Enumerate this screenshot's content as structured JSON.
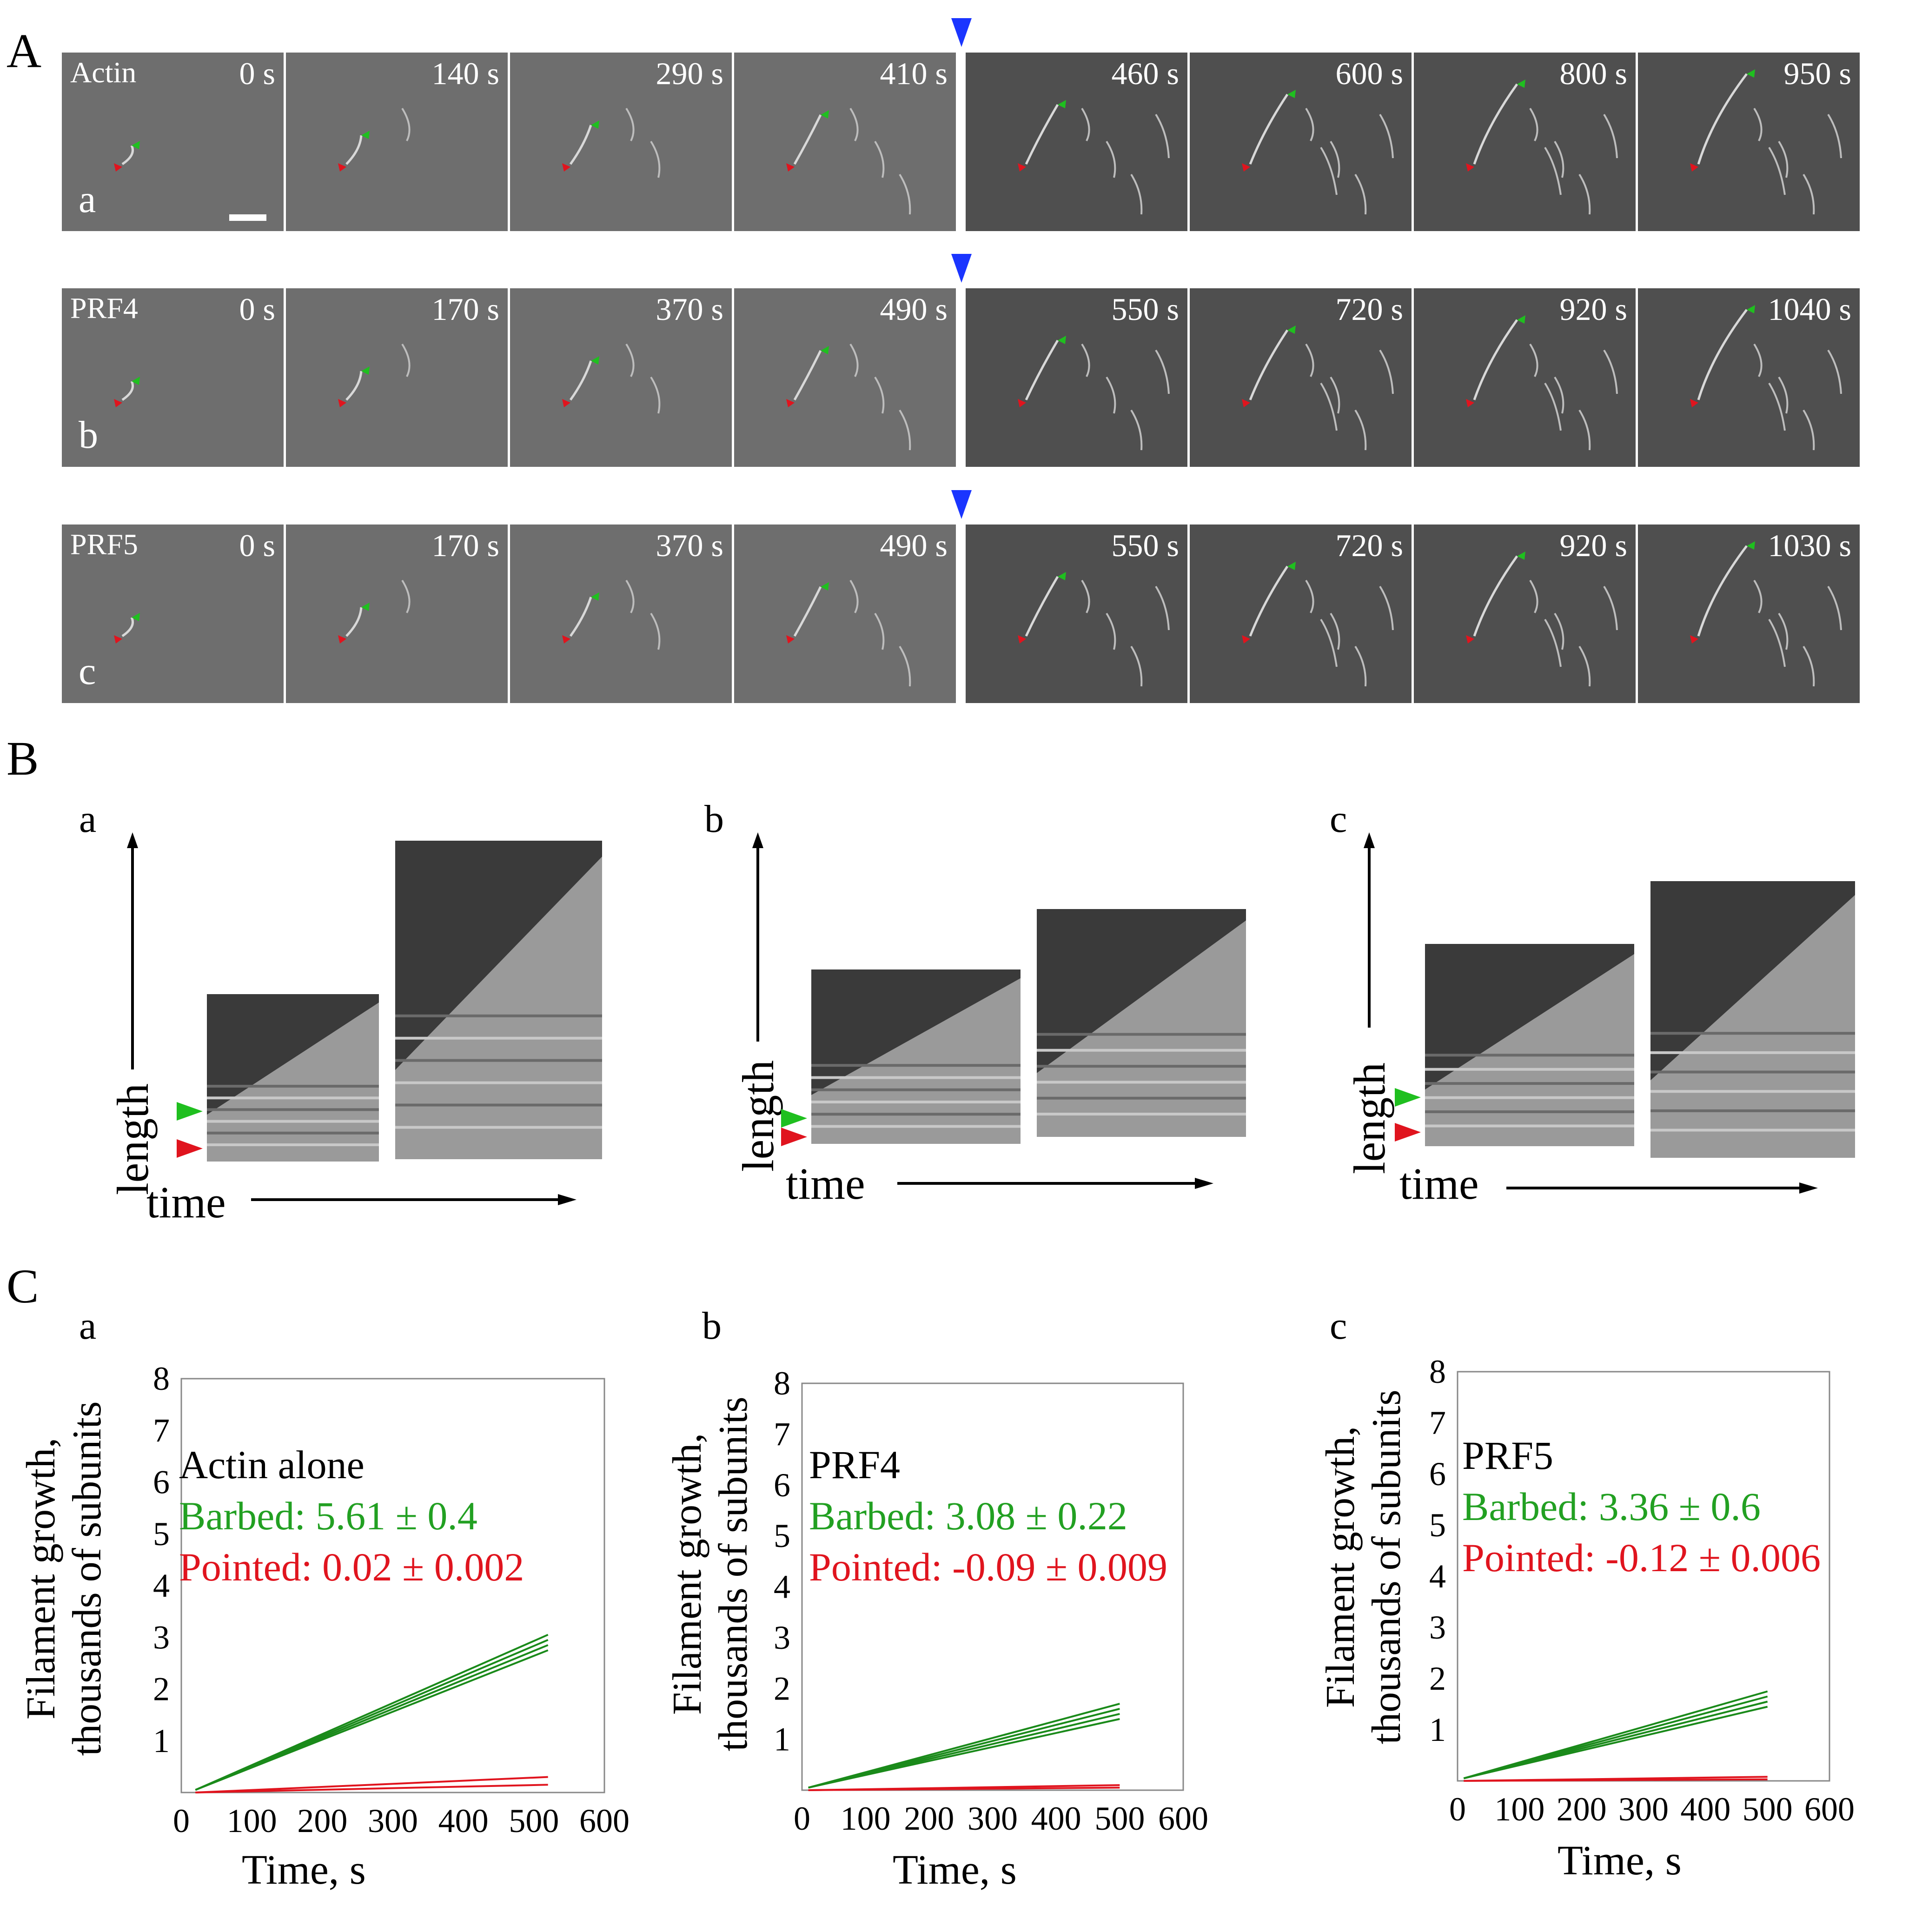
{
  "panels": {
    "A": {
      "label": "A",
      "rows": [
        {
          "condition": "Actin",
          "letter": "a",
          "times": [
            "0 s",
            "140 s",
            "290 s",
            "410 s",
            "460 s",
            "600 s",
            "800 s",
            "950 s"
          ]
        },
        {
          "condition": "PRF4",
          "letter": "b",
          "times": [
            "0 s",
            "170 s",
            "370 s",
            "490 s",
            "550 s",
            "720 s",
            "920 s",
            "1040 s"
          ]
        },
        {
          "condition": "PRF5",
          "letter": "c",
          "times": [
            "0 s",
            "170 s",
            "370 s",
            "490 s",
            "550 s",
            "720 s",
            "920 s",
            "1030 s"
          ]
        }
      ]
    },
    "B": {
      "label": "B",
      "subpanels": [
        {
          "letter": "a",
          "y_axis": "length",
          "x_axis": "time"
        },
        {
          "letter": "b",
          "y_axis": "length",
          "x_axis": "time"
        },
        {
          "letter": "c",
          "y_axis": "length",
          "x_axis": "time"
        }
      ]
    },
    "C": {
      "label": "C",
      "subpanels": [
        {
          "letter": "a",
          "condition": "Actin alone",
          "barbed": "Barbed:  5.61 ± 0.4",
          "pointed": "Pointed: 0.02 ± 0.002"
        },
        {
          "letter": "b",
          "condition": "PRF4",
          "barbed": "Barbed:  3.08 ± 0.22",
          "pointed": "Pointed: -0.09 ± 0.009"
        },
        {
          "letter": "c",
          "condition": "PRF5",
          "barbed": "Barbed:  3.36 ± 0.6",
          "pointed": "Pointed: -0.12 ± 0.006"
        }
      ]
    }
  },
  "colors": {
    "barbed": "#1a8a1a",
    "pointed": "#e0141e",
    "marker": "#1a35ff",
    "annot_green": "#22a022",
    "annot_red": "#e0141e"
  },
  "chart_data": [
    {
      "type": "line",
      "xlabel": "Time, s",
      "ylabel": "Filament growth,\nthousands of subunits",
      "xlim": [
        0,
        600
      ],
      "ylim": [
        0,
        8
      ],
      "xticks": [
        "0",
        "100",
        "200",
        "300",
        "400",
        "500",
        "600"
      ],
      "yticks": [
        "1",
        "2",
        "3",
        "4",
        "5",
        "6",
        "7",
        "8"
      ],
      "series": [
        {
          "end": "barbed",
          "x": [
            20,
            520
          ],
          "values": [
            0.05,
            3.05
          ]
        },
        {
          "end": "barbed",
          "x": [
            20,
            520
          ],
          "values": [
            0.05,
            2.95
          ]
        },
        {
          "end": "barbed",
          "x": [
            20,
            520
          ],
          "values": [
            0.05,
            2.85
          ]
        },
        {
          "end": "barbed",
          "x": [
            20,
            520
          ],
          "values": [
            0.05,
            2.75
          ]
        },
        {
          "end": "pointed",
          "x": [
            20,
            520
          ],
          "values": [
            0.0,
            0.3
          ]
        },
        {
          "end": "pointed",
          "x": [
            20,
            520
          ],
          "values": [
            0.0,
            0.15
          ]
        }
      ]
    },
    {
      "type": "line",
      "xlabel": "Time, s",
      "ylabel": "Filament growth,\nthousands of subunits",
      "xlim": [
        0,
        600
      ],
      "ylim": [
        0,
        8
      ],
      "xticks": [
        "0",
        "100",
        "200",
        "300",
        "400",
        "500",
        "600"
      ],
      "yticks": [
        "1",
        "2",
        "3",
        "4",
        "5",
        "6",
        "7",
        "8"
      ],
      "series": [
        {
          "end": "barbed",
          "x": [
            10,
            500
          ],
          "values": [
            0.05,
            1.7
          ]
        },
        {
          "end": "barbed",
          "x": [
            10,
            500
          ],
          "values": [
            0.05,
            1.6
          ]
        },
        {
          "end": "barbed",
          "x": [
            10,
            500
          ],
          "values": [
            0.05,
            1.5
          ]
        },
        {
          "end": "barbed",
          "x": [
            10,
            500
          ],
          "values": [
            0.05,
            1.4
          ]
        },
        {
          "end": "pointed",
          "x": [
            10,
            500
          ],
          "values": [
            0.0,
            0.1
          ]
        },
        {
          "end": "pointed",
          "x": [
            10,
            500
          ],
          "values": [
            0.0,
            0.05
          ]
        }
      ]
    },
    {
      "type": "line",
      "xlabel": "Time, s",
      "ylabel": "Filament growth,\nthousands of subunits",
      "xlim": [
        0,
        600
      ],
      "ylim": [
        0,
        8
      ],
      "xticks": [
        "0",
        "100",
        "200",
        "300",
        "400",
        "500",
        "600"
      ],
      "yticks": [
        "1",
        "2",
        "3",
        "4",
        "5",
        "6",
        "7",
        "8"
      ],
      "series": [
        {
          "end": "barbed",
          "x": [
            10,
            500
          ],
          "values": [
            0.05,
            1.75
          ]
        },
        {
          "end": "barbed",
          "x": [
            10,
            500
          ],
          "values": [
            0.05,
            1.65
          ]
        },
        {
          "end": "barbed",
          "x": [
            10,
            500
          ],
          "values": [
            0.05,
            1.55
          ]
        },
        {
          "end": "barbed",
          "x": [
            10,
            500
          ],
          "values": [
            0.05,
            1.45
          ]
        },
        {
          "end": "pointed",
          "x": [
            10,
            500
          ],
          "values": [
            0.0,
            0.08
          ]
        },
        {
          "end": "pointed",
          "x": [
            10,
            500
          ],
          "values": [
            0.0,
            0.03
          ]
        }
      ]
    }
  ]
}
